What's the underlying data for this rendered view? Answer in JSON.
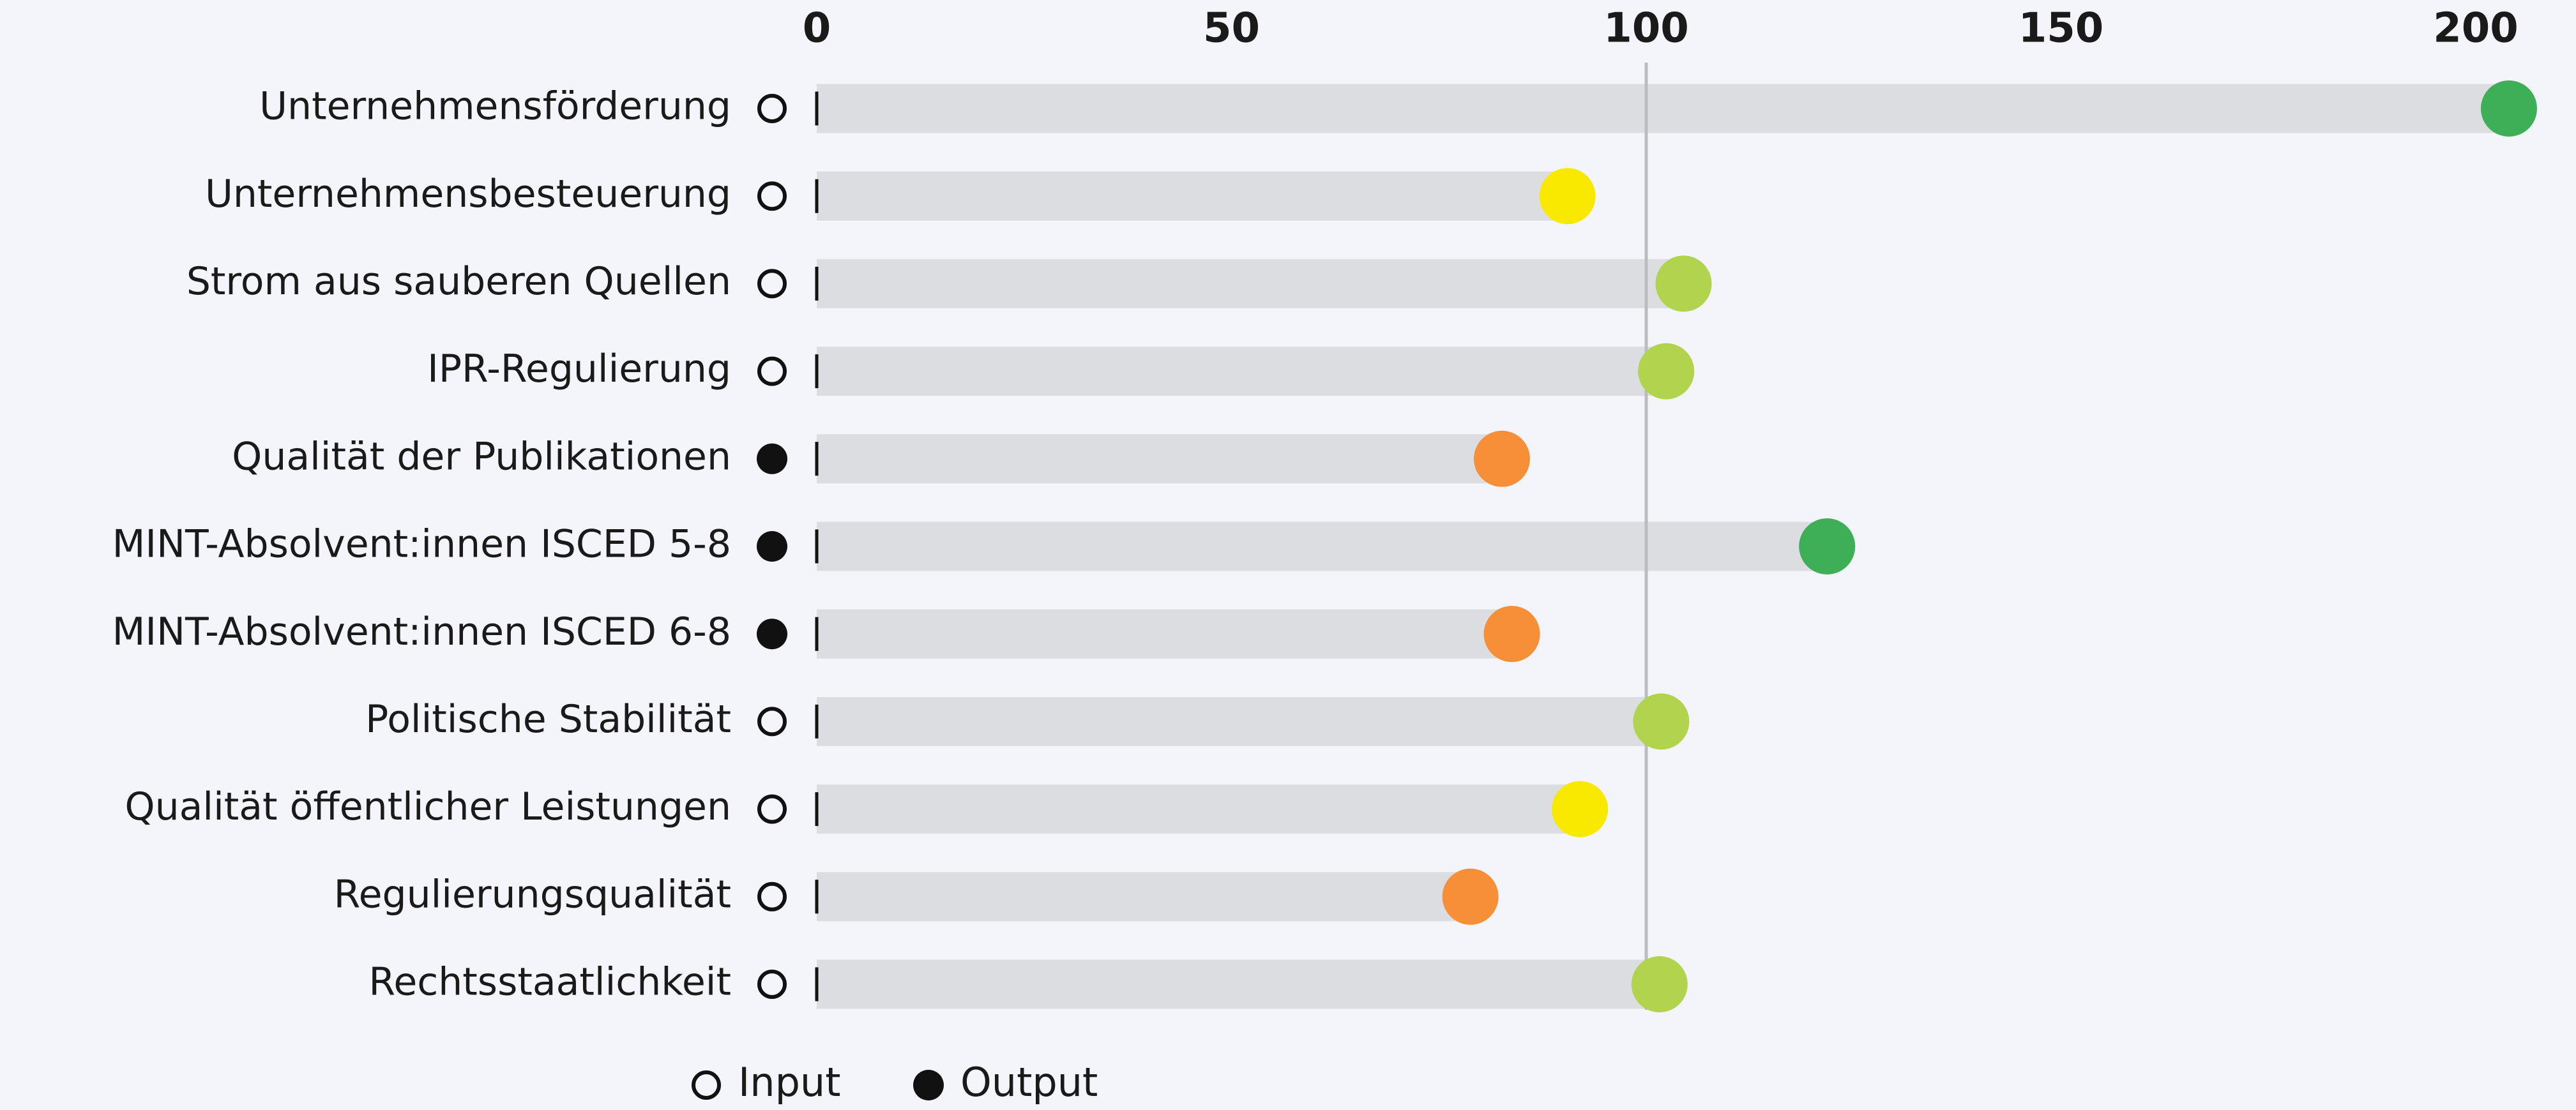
{
  "chart_data": {
    "type": "lollipop",
    "categories": [
      "Unternehmensförderung",
      "Unternehmensbesteuerung",
      "Strom aus sauberen Quellen",
      "IPR-Regulierung",
      "Qualität der Publikationen",
      "MINT-Absolvent:innen ISCED 5-8",
      "MINT-Absolvent:innen ISCED 6-8",
      "Politische Stabilität",
      "Qualität öffentlicher Leistungen",
      "Regulierungsqualität",
      "Rechtsstaatlichkeit"
    ],
    "values": [
      204,
      90.5,
      104.5,
      102.4,
      82.6,
      121.8,
      83.8,
      101.8,
      92,
      78.8,
      101.6
    ],
    "colors": [
      "#3daf57",
      "#f9e900",
      "#b2d34d",
      "#b2d34d",
      "#f68f38",
      "#3daf57",
      "#f68f38",
      "#b2d34d",
      "#f9e900",
      "#f68f38",
      "#b2d34d"
    ],
    "row_types": [
      "Input",
      "Input",
      "Input",
      "Input",
      "Output",
      "Output",
      "Output",
      "Input",
      "Input",
      "Input",
      "Input"
    ],
    "legend": [
      {
        "name": "Input",
        "filled": false
      },
      {
        "name": "Output",
        "filled": true
      }
    ],
    "xlim": [
      0,
      205
    ],
    "xticks": [
      0,
      50,
      100,
      150,
      200
    ],
    "reference_value": 100,
    "bar_color": "#dcdde1"
  }
}
